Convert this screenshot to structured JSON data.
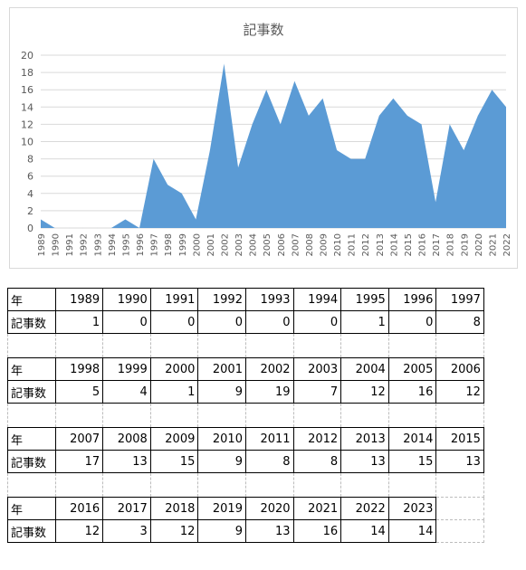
{
  "chart_data": {
    "type": "area",
    "title": "記事数",
    "x": [
      "1989",
      "1990",
      "1991",
      "1992",
      "1993",
      "1994",
      "1995",
      "1996",
      "1997",
      "1998",
      "1999",
      "2000",
      "2001",
      "2002",
      "2003",
      "2004",
      "2005",
      "2006",
      "2007",
      "2008",
      "2009",
      "2010",
      "2011",
      "2012",
      "2013",
      "2014",
      "2015",
      "2016",
      "2017",
      "2018",
      "2019",
      "2020",
      "2021",
      "2022"
    ],
    "values": [
      1,
      0,
      0,
      0,
      0,
      0,
      1,
      0,
      8,
      5,
      4,
      1,
      9,
      19,
      7,
      12,
      16,
      12,
      17,
      13,
      15,
      9,
      8,
      8,
      13,
      15,
      13,
      12,
      3,
      12,
      9,
      13,
      16,
      14
    ],
    "ylim": [
      0,
      20
    ],
    "yticks": [
      "0",
      "2",
      "4",
      "6",
      "8",
      "10",
      "12",
      "14",
      "16",
      "18",
      "20"
    ],
    "grid": true,
    "color": "#5b9bd5"
  },
  "table": {
    "row_label_year": "年",
    "row_label_count": "記事数",
    "blocks": [
      {
        "years": [
          "1989",
          "1990",
          "1991",
          "1992",
          "1993",
          "1994",
          "1995",
          "1996",
          "1997"
        ],
        "counts": [
          "1",
          "0",
          "0",
          "0",
          "0",
          "0",
          "1",
          "0",
          "8"
        ]
      },
      {
        "years": [
          "1998",
          "1999",
          "2000",
          "2001",
          "2002",
          "2003",
          "2004",
          "2005",
          "2006"
        ],
        "counts": [
          "5",
          "4",
          "1",
          "9",
          "19",
          "7",
          "12",
          "16",
          "12"
        ]
      },
      {
        "years": [
          "2007",
          "2008",
          "2009",
          "2010",
          "2011",
          "2012",
          "2013",
          "2014",
          "2015"
        ],
        "counts": [
          "17",
          "13",
          "15",
          "9",
          "8",
          "8",
          "13",
          "15",
          "13"
        ]
      },
      {
        "years": [
          "2016",
          "2017",
          "2018",
          "2019",
          "2020",
          "2021",
          "2022",
          "2023"
        ],
        "counts": [
          "12",
          "3",
          "12",
          "9",
          "13",
          "16",
          "14",
          "14"
        ]
      }
    ]
  }
}
